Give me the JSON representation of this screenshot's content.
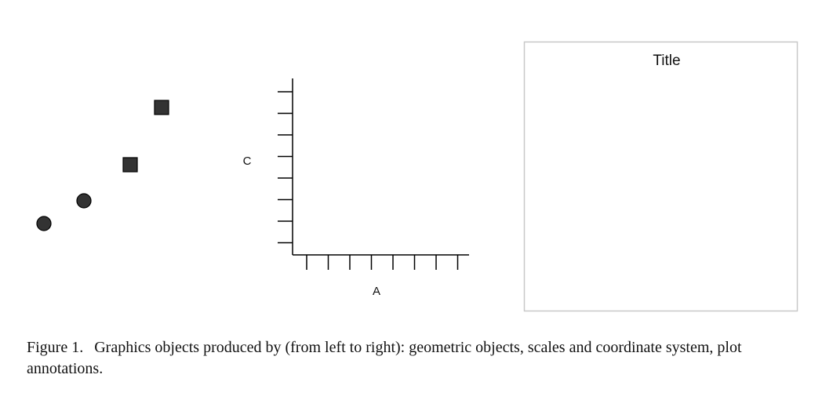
{
  "panels": {
    "geoms": {
      "points": [
        {
          "shape": "circle"
        },
        {
          "shape": "circle"
        },
        {
          "shape": "square"
        },
        {
          "shape": "square"
        }
      ],
      "fill_color": "#333333"
    },
    "scales": {
      "y_label": "C",
      "x_label": "A",
      "y_tick_count": 8,
      "x_tick_count": 8
    },
    "annotations": {
      "title": "Title"
    }
  },
  "caption": {
    "label": "Figure 1.",
    "text": "Graphics objects produced by (from left to right): geometric objects, scales and coordinate system, plot annotations."
  }
}
